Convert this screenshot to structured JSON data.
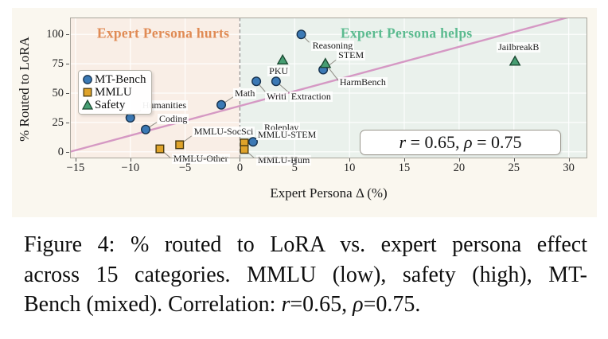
{
  "chart_data": {
    "type": "scatter",
    "x_axis": {
      "label": "Expert Persona Δ (%)",
      "ticks": [
        "−15",
        "−10",
        "−5",
        "0",
        "5",
        "10",
        "15",
        "20",
        "25",
        "30"
      ],
      "tick_values": [
        -15,
        -10,
        -5,
        0,
        5,
        10,
        15,
        20,
        25,
        30
      ]
    },
    "y_axis": {
      "label": "% Routed to LoRA",
      "ticks": [
        "0",
        "25",
        "50",
        "75",
        "100"
      ],
      "tick_values": [
        0,
        25,
        50,
        75,
        100
      ]
    },
    "xlim": [
      -15.5,
      31.7
    ],
    "ylim": [
      -5.6,
      114.4
    ],
    "grid": true,
    "zero_line": {
      "x": 0,
      "style": "dashed"
    },
    "regions": [
      {
        "name": "hurts-region",
        "x_range": [
          -15.5,
          0
        ],
        "color": "#f9eee6"
      },
      {
        "name": "helps-region",
        "x_range": [
          0,
          31.7
        ],
        "color": "#eaf1ec"
      }
    ],
    "trend_line": {
      "x1": -15.5,
      "y1": 0,
      "x2": 29.9,
      "y2": 114.4,
      "color": "#d494c2"
    },
    "series": [
      {
        "name": "MT-Bench",
        "marker": "circle",
        "fill": "#3b79b5",
        "edge": "#16324f",
        "points": [
          {
            "name": "humanities",
            "label": "Humanities",
            "x": -10.0,
            "y": 29,
            "label_dx": 13,
            "label_dy": -22,
            "conn": [
              14,
              -10
            ]
          },
          {
            "name": "coding",
            "label": "Coding",
            "x": -8.6,
            "y": 19,
            "label_dx": 15,
            "label_dy": -20,
            "conn": [
              14,
              -9
            ]
          },
          {
            "name": "math",
            "label": "Math",
            "x": -1.7,
            "y": 40,
            "label_dx": 15,
            "label_dy": -21,
            "conn": [
              15,
              -10
            ]
          },
          {
            "name": "writing",
            "label": "Writi",
            "x": 1.5,
            "y": 60,
            "label_dx": 11,
            "label_dy": 13,
            "conn": [
              12,
              14
            ]
          },
          {
            "name": "extraction",
            "label": "Extraction",
            "x": 3.3,
            "y": 60,
            "label_dx": 17,
            "label_dy": 13,
            "conn": [
              16,
              14
            ]
          },
          {
            "name": "reasoning",
            "label": "Reasoning",
            "x": 5.6,
            "y": 100,
            "label_dx": 12,
            "label_dy": 8,
            "conn": [
              10,
              10
            ]
          },
          {
            "name": "stem",
            "label": "STEM",
            "x": 7.6,
            "y": 70,
            "label_dx": 17,
            "label_dy": -24,
            "conn": [
              16,
              -12
            ]
          },
          {
            "name": "roleplay",
            "label": "Roleplay",
            "x": 1.2,
            "y": 8.5,
            "label_dx": 12,
            "label_dy": -24,
            "conn": [
              12,
              -13
            ]
          }
        ]
      },
      {
        "name": "MMLU",
        "marker": "square",
        "fill": "#dfa32a",
        "edge": "#4a3a10",
        "points": [
          {
            "name": "mmlu-other",
            "label": "MMLU-Other",
            "x": -7.3,
            "y": 2.5,
            "label_dx": 15,
            "label_dy": 6,
            "conn": [
              14,
              12
            ]
          },
          {
            "name": "mmlu-socsci",
            "label": "MMLU-SocSci",
            "x": -5.5,
            "y": 6,
            "label_dx": 16,
            "label_dy": -23,
            "conn": [
              15,
              -11
            ]
          },
          {
            "name": "mmlu-stem",
            "label": "MMLU-STEM",
            "x": 0.4,
            "y": 7.5,
            "label_dx": 15,
            "label_dy": -17,
            "conn": [
              14,
              -6
            ]
          },
          {
            "name": "mmlu-hum",
            "label": "MMLU-Hum",
            "x": 0.4,
            "y": 2,
            "label_dx": 15,
            "label_dy": 7,
            "conn": [
              14,
              12
            ]
          }
        ]
      },
      {
        "name": "Safety",
        "marker": "triangle",
        "fill": "#469d72",
        "edge": "#1c4a33",
        "points": [
          {
            "name": "pku",
            "label": "PKU",
            "x": 3.9,
            "y": 78,
            "label_dx": -19,
            "label_dy": 7,
            "conn": null
          },
          {
            "name": "harmbench",
            "label": "HarmBench",
            "x": 7.8,
            "y": 75,
            "label_dx": 16,
            "label_dy": 17,
            "conn": [
              17,
              22
            ]
          },
          {
            "name": "jailbreakb",
            "label": "JailbreakB",
            "x": 25.1,
            "y": 77,
            "label_dx": -23,
            "label_dy": -24,
            "conn": null
          }
        ]
      }
    ],
    "annotations": [
      {
        "name": "hurts",
        "text": "Expert Persona hurts",
        "x": -7.0,
        "y": 101,
        "color": "#e08b55"
      },
      {
        "name": "helps",
        "text": "Expert Persona helps",
        "x": 15.2,
        "y": 101,
        "color": "#5cbb90"
      }
    ],
    "stat_box": {
      "r_label": "r",
      "mid": " = 0.65, ",
      "rho_label": "ρ",
      "end": " = 0.75"
    },
    "correlation": {
      "r": 0.65,
      "rho": 0.75
    },
    "legend_position": "center-left"
  },
  "caption": {
    "line1": "Figure 4: % routed to LoRA vs. expert persona effect",
    "line2": "across 15 categories. MMLU (low), safety (high), MT-",
    "line3_pre": "Bench (mixed). Correlation: ",
    "line3_r": "r",
    "line3_mid": "=0.65, ",
    "line3_rho": "ρ",
    "line3_end": "=0.75."
  }
}
